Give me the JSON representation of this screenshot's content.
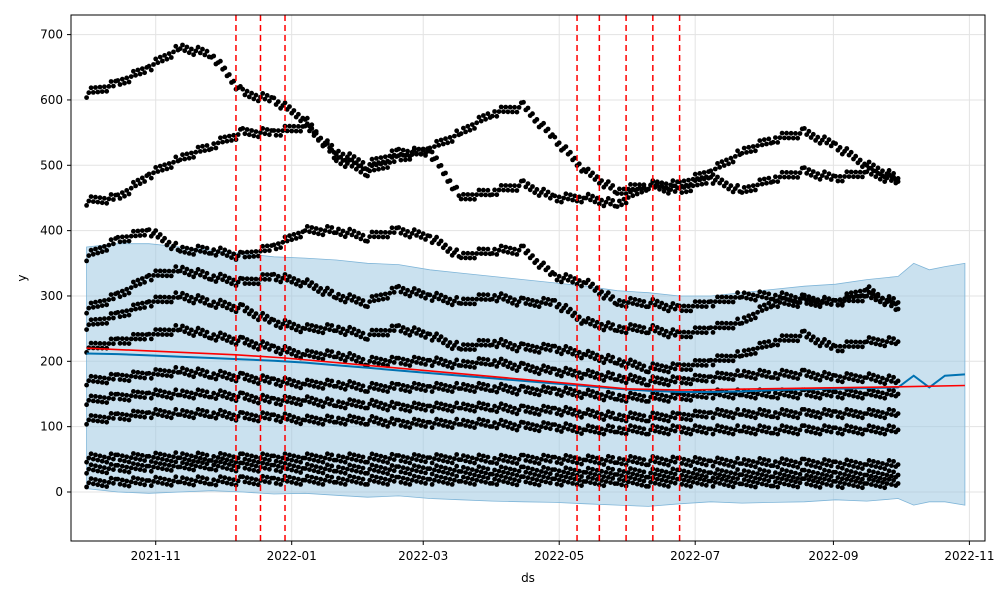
{
  "chart_data": {
    "type": "scatter",
    "xlabel": "ds",
    "ylabel": "y",
    "xlim": [
      "2021-09-24",
      "2022-11-08"
    ],
    "ylim": [
      -75,
      730
    ],
    "grid": true,
    "x_ticks": [
      "2021-11",
      "2022-01",
      "2022-03",
      "2022-05",
      "2022-07",
      "2022-09",
      "2022-11"
    ],
    "x_tick_dates": [
      "2021-11-01",
      "2022-01-01",
      "2022-03-01",
      "2022-05-01",
      "2022-07-01",
      "2022-09-01",
      "2022-11-01"
    ],
    "y_ticks": [
      0,
      100,
      200,
      300,
      400,
      500,
      600,
      700
    ],
    "changepoints": [
      "2021-12-07",
      "2021-12-18",
      "2021-12-29",
      "2022-05-09",
      "2022-05-19",
      "2022-05-31",
      "2022-06-12",
      "2022-06-24"
    ],
    "trend_line": {
      "x": [
        "2021-10-01",
        "2021-12-07",
        "2021-12-29",
        "2022-05-09",
        "2022-05-31",
        "2022-06-24",
        "2022-09-30",
        "2022-10-30"
      ],
      "y": [
        220,
        210,
        205,
        165,
        158,
        156,
        161,
        163
      ]
    },
    "observation_series": [
      {
        "x": [
          "2021-10-01",
          "2021-10-15",
          "2021-10-29",
          "2021-11-12",
          "2021-11-26",
          "2021-12-10",
          "2021-12-24",
          "2022-01-07",
          "2022-01-21",
          "2022-02-04",
          "2022-02-18",
          "2022-03-04",
          "2022-03-18",
          "2022-04-01",
          "2022-04-15",
          "2022-04-29",
          "2022-05-13",
          "2022-05-27",
          "2022-06-10",
          "2022-06-24",
          "2022-07-08",
          "2022-07-22",
          "2022-08-05",
          "2022-08-19",
          "2022-09-02",
          "2022-09-16",
          "2022-09-30"
        ],
        "y": [
          610,
          625,
          650,
          680,
          670,
          610,
          600,
          570,
          510,
          490,
          510,
          525,
          550,
          580,
          590,
          540,
          490,
          460,
          470,
          470,
          490,
          520,
          540,
          550,
          530,
          500,
          480
        ]
      },
      {
        "x": [
          "2021-10-01",
          "2021-10-15",
          "2021-10-29",
          "2021-11-12",
          "2021-11-26",
          "2021-12-10",
          "2021-12-24",
          "2022-01-07",
          "2022-01-21",
          "2022-02-04",
          "2022-02-18",
          "2022-03-04",
          "2022-03-18",
          "2022-04-01",
          "2022-04-15",
          "2022-04-29",
          "2022-05-13",
          "2022-05-27",
          "2022-06-10",
          "2022-06-24",
          "2022-07-08",
          "2022-07-22",
          "2022-08-05",
          "2022-08-19",
          "2022-09-02",
          "2022-09-16",
          "2022-09-30"
        ],
        "y": [
          445,
          450,
          485,
          510,
          530,
          550,
          550,
          560,
          520,
          500,
          520,
          520,
          450,
          460,
          470,
          450,
          450,
          440,
          470,
          460,
          480,
          460,
          480,
          490,
          480,
          490,
          475
        ]
      },
      {
        "x": [
          "2021-10-01",
          "2021-10-15",
          "2021-10-29",
          "2021-11-12",
          "2021-11-26",
          "2021-12-10",
          "2021-12-24",
          "2022-01-07",
          "2022-01-21",
          "2022-02-04",
          "2022-02-18",
          "2022-03-04",
          "2022-03-18",
          "2022-04-01",
          "2022-04-15",
          "2022-04-29",
          "2022-05-13",
          "2022-05-27",
          "2022-06-10",
          "2022-06-24",
          "2022-07-08",
          "2022-07-22",
          "2022-08-05",
          "2022-08-19",
          "2022-09-02",
          "2022-09-16",
          "2022-09-30"
        ],
        "y": [
          360,
          385,
          400,
          370,
          370,
          360,
          375,
          400,
          400,
          390,
          400,
          390,
          360,
          370,
          370,
          330,
          320,
          290,
          290,
          280,
          290,
          300,
          300,
          295,
          290,
          300,
          290
        ]
      },
      {
        "x": [
          "2021-10-01",
          "2021-10-15",
          "2021-10-29",
          "2021-11-12",
          "2021-11-26",
          "2021-12-10",
          "2021-12-24",
          "2022-01-07",
          "2022-01-21",
          "2022-02-04",
          "2022-02-18",
          "2022-03-04",
          "2022-03-18",
          "2022-04-01",
          "2022-04-15",
          "2022-04-29",
          "2022-05-13",
          "2022-05-27",
          "2022-06-10",
          "2022-06-24",
          "2022-07-08",
          "2022-07-22",
          "2022-08-05",
          "2022-08-19",
          "2022-09-02",
          "2022-09-16",
          "2022-09-30"
        ],
        "y": [
          280,
          300,
          330,
          340,
          330,
          320,
          330,
          320,
          300,
          290,
          310,
          300,
          290,
          300,
          290,
          290,
          260,
          250,
          250,
          240,
          250,
          260,
          290,
          290,
          290,
          310,
          280
        ]
      },
      {
        "x": [
          "2021-10-01",
          "2021-10-15",
          "2021-10-29",
          "2021-11-12",
          "2021-11-26",
          "2021-12-10",
          "2021-12-24",
          "2022-01-07",
          "2022-01-21",
          "2022-02-04",
          "2022-02-18",
          "2022-03-04",
          "2022-03-18",
          "2022-04-01",
          "2022-04-15",
          "2022-04-29",
          "2022-05-13",
          "2022-05-27",
          "2022-06-10",
          "2022-06-24",
          "2022-07-08",
          "2022-07-22",
          "2022-08-05",
          "2022-08-19",
          "2022-09-02",
          "2022-09-16",
          "2022-09-30"
        ],
        "y": [
          255,
          270,
          290,
          300,
          290,
          280,
          260,
          250,
          250,
          240,
          250,
          240,
          220,
          230,
          220,
          220,
          210,
          200,
          190,
          190,
          200,
          210,
          230,
          240,
          220,
          230,
          230
        ]
      },
      {
        "x": [
          "2021-10-01",
          "2021-10-15",
          "2021-10-29",
          "2021-11-12",
          "2021-11-26",
          "2021-12-10",
          "2021-12-24",
          "2022-01-07",
          "2022-01-21",
          "2022-02-04",
          "2022-02-18",
          "2022-03-04",
          "2022-03-18",
          "2022-04-01",
          "2022-04-15",
          "2022-04-29",
          "2022-05-13",
          "2022-05-27",
          "2022-06-10",
          "2022-06-24",
          "2022-07-08",
          "2022-07-22",
          "2022-08-05",
          "2022-08-19",
          "2022-09-02",
          "2022-09-16",
          "2022-09-30"
        ],
        "y": [
          220,
          230,
          240,
          250,
          240,
          230,
          220,
          210,
          210,
          200,
          200,
          200,
          195,
          200,
          190,
          185,
          180,
          175,
          170,
          170,
          175,
          180,
          180,
          180,
          175,
          175,
          170
        ]
      },
      {
        "x": [
          "2021-10-01",
          "2021-10-15",
          "2021-10-29",
          "2021-11-12",
          "2021-11-26",
          "2021-12-10",
          "2021-12-24",
          "2022-01-07",
          "2022-01-21",
          "2022-02-04",
          "2022-02-18",
          "2022-03-04",
          "2022-03-18",
          "2022-04-01",
          "2022-04-15",
          "2022-04-29",
          "2022-05-13",
          "2022-05-27",
          "2022-06-10",
          "2022-06-24",
          "2022-07-08",
          "2022-07-22",
          "2022-08-05",
          "2022-08-19",
          "2022-09-02",
          "2022-09-16",
          "2022-09-30"
        ],
        "y": [
          170,
          175,
          180,
          185,
          180,
          175,
          170,
          165,
          165,
          160,
          160,
          160,
          160,
          160,
          155,
          155,
          150,
          145,
          145,
          145,
          150,
          150,
          150,
          150,
          150,
          150,
          150
        ]
      },
      {
        "x": [
          "2021-10-01",
          "2021-10-15",
          "2021-10-29",
          "2021-11-12",
          "2021-11-26",
          "2021-12-10",
          "2021-12-24",
          "2022-01-07",
          "2022-01-21",
          "2022-02-04",
          "2022-02-18",
          "2022-03-04",
          "2022-03-18",
          "2022-04-01",
          "2022-04-15",
          "2022-04-29",
          "2022-05-13",
          "2022-05-27",
          "2022-06-10",
          "2022-06-24",
          "2022-07-08",
          "2022-07-22",
          "2022-08-05",
          "2022-08-19",
          "2022-09-02",
          "2022-09-16",
          "2022-09-30"
        ],
        "y": [
          140,
          145,
          150,
          150,
          150,
          145,
          140,
          140,
          135,
          135,
          130,
          130,
          130,
          130,
          125,
          125,
          120,
          115,
          115,
          115,
          120,
          120,
          120,
          120,
          120,
          120,
          120
        ]
      },
      {
        "x": [
          "2021-10-01",
          "2021-10-15",
          "2021-10-29",
          "2021-11-12",
          "2021-11-26",
          "2021-12-10",
          "2021-12-24",
          "2022-01-07",
          "2022-01-21",
          "2022-02-04",
          "2022-02-18",
          "2022-03-04",
          "2022-03-18",
          "2022-04-01",
          "2022-04-15",
          "2022-04-29",
          "2022-05-13",
          "2022-05-27",
          "2022-06-10",
          "2022-06-24",
          "2022-07-08",
          "2022-07-22",
          "2022-08-05",
          "2022-08-19",
          "2022-09-02",
          "2022-09-16",
          "2022-09-30"
        ],
        "y": [
          110,
          115,
          120,
          120,
          120,
          115,
          115,
          110,
          110,
          110,
          105,
          105,
          105,
          105,
          100,
          100,
          95,
          95,
          95,
          95,
          95,
          95,
          95,
          95,
          95,
          95,
          95
        ]
      },
      {
        "x": [
          "2021-10-01",
          "2021-10-15",
          "2021-10-29",
          "2021-11-12",
          "2021-11-26",
          "2021-12-10",
          "2021-12-24",
          "2022-01-07",
          "2022-01-21",
          "2022-02-04",
          "2022-02-18",
          "2022-03-04",
          "2022-03-18",
          "2022-04-01",
          "2022-04-15",
          "2022-04-29",
          "2022-05-13",
          "2022-05-27",
          "2022-06-10",
          "2022-06-24",
          "2022-07-08",
          "2022-07-22",
          "2022-08-05",
          "2022-08-19",
          "2022-09-02",
          "2022-09-16",
          "2022-09-30"
        ],
        "y": [
          52,
          52,
          53,
          54,
          53,
          52,
          52,
          52,
          52,
          52,
          51,
          51,
          51,
          50,
          50,
          50,
          49,
          48,
          48,
          47,
          46,
          45,
          45,
          44,
          43,
          42,
          42
        ]
      },
      {
        "x": [
          "2021-10-01",
          "2021-10-15",
          "2021-10-29",
          "2021-11-12",
          "2021-11-26",
          "2021-12-10",
          "2021-12-24",
          "2022-01-07",
          "2022-01-21",
          "2022-02-04",
          "2022-02-18",
          "2022-03-04",
          "2022-03-18",
          "2022-04-01",
          "2022-04-15",
          "2022-04-29",
          "2022-05-13",
          "2022-05-27",
          "2022-06-10",
          "2022-06-24",
          "2022-07-08",
          "2022-07-22",
          "2022-08-05",
          "2022-08-19",
          "2022-09-02",
          "2022-09-16",
          "2022-09-30"
        ],
        "y": [
          35,
          36,
          38,
          40,
          40,
          38,
          38,
          36,
          35,
          35,
          34,
          34,
          33,
          32,
          32,
          31,
          30,
          30,
          29,
          29,
          28,
          28,
          28,
          27,
          27,
          26,
          26
        ]
      },
      {
        "x": [
          "2021-10-01",
          "2021-10-15",
          "2021-10-29",
          "2021-11-12",
          "2021-11-26",
          "2021-12-10",
          "2021-12-24",
          "2022-01-07",
          "2022-01-21",
          "2022-02-04",
          "2022-02-18",
          "2022-03-04",
          "2022-03-18",
          "2022-04-01",
          "2022-04-15",
          "2022-04-29",
          "2022-05-13",
          "2022-05-27",
          "2022-06-10",
          "2022-06-24",
          "2022-07-08",
          "2022-07-22",
          "2022-08-05",
          "2022-08-19",
          "2022-09-02",
          "2022-09-16",
          "2022-09-30"
        ],
        "y": [
          14,
          15,
          16,
          17,
          17,
          17,
          18,
          18,
          18,
          18,
          18,
          18,
          18,
          18,
          17,
          17,
          16,
          16,
          15,
          15,
          15,
          14,
          14,
          14,
          13,
          13,
          13
        ]
      }
    ],
    "forecast": {
      "x": [
        "2021-10-01",
        "2021-10-15",
        "2021-10-29",
        "2021-11-12",
        "2021-11-26",
        "2021-12-10",
        "2021-12-24",
        "2022-01-07",
        "2022-01-21",
        "2022-02-04",
        "2022-02-18",
        "2022-03-04",
        "2022-03-18",
        "2022-04-01",
        "2022-04-15",
        "2022-04-29",
        "2022-05-13",
        "2022-05-27",
        "2022-06-10",
        "2022-06-24",
        "2022-07-08",
        "2022-07-22",
        "2022-08-05",
        "2022-08-19",
        "2022-09-02",
        "2022-09-16",
        "2022-09-30",
        "2022-10-07",
        "2022-10-14",
        "2022-10-21",
        "2022-10-30"
      ],
      "y": [
        212,
        211,
        209,
        207,
        205,
        203,
        201,
        198,
        194,
        190,
        186,
        182,
        178,
        174,
        170,
        166,
        162,
        158,
        155,
        153,
        153,
        154,
        156,
        157,
        158,
        159,
        160,
        178,
        160,
        178,
        180
      ],
      "lower": [
        5,
        0,
        -2,
        0,
        2,
        0,
        -3,
        -2,
        -5,
        -8,
        -6,
        -10,
        -12,
        -14,
        -15,
        -16,
        -18,
        -20,
        -22,
        -18,
        -15,
        -17,
        -16,
        -15,
        -12,
        -14,
        -10,
        -20,
        -15,
        -15,
        -20
      ],
      "upper": [
        375,
        380,
        380,
        375,
        370,
        365,
        360,
        358,
        355,
        350,
        348,
        340,
        335,
        330,
        325,
        320,
        315,
        308,
        305,
        300,
        300,
        305,
        310,
        315,
        318,
        325,
        330,
        350,
        340,
        345,
        350
      ]
    }
  }
}
